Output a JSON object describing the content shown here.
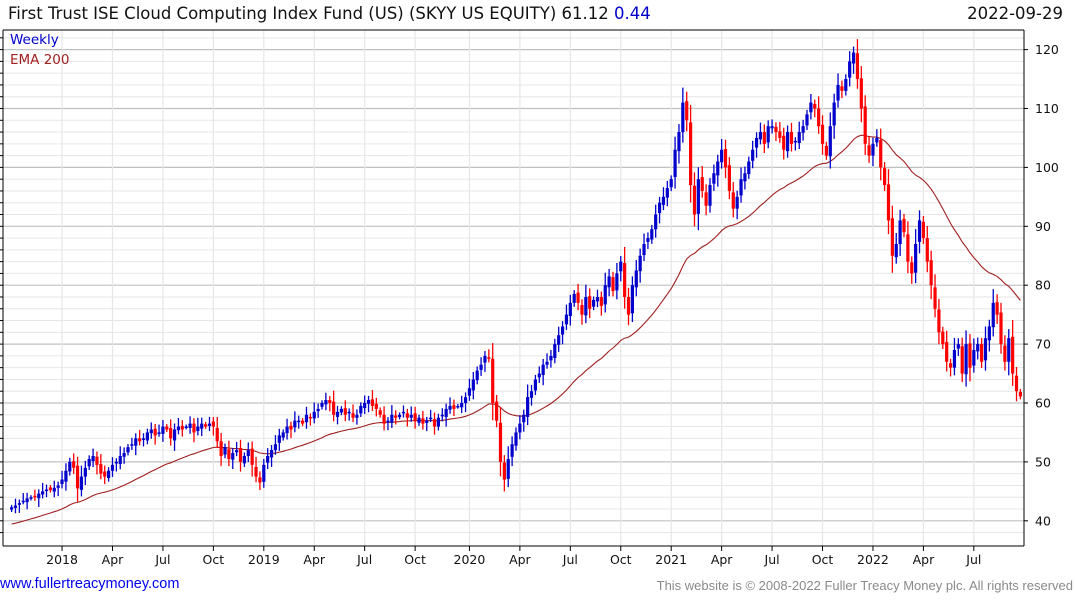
{
  "header": {
    "title": "First Trust ISE Cloud Computing Index Fund (US) (SKYY US EQUITY)",
    "last_price": "61.12",
    "change": "0.44",
    "date": "2022-09-29"
  },
  "legend": {
    "weekly": "Weekly",
    "ema": "EMA 200"
  },
  "footer": {
    "link": "www.fullertreacymoney.com",
    "copyright": "This website is © 2008-2022 Fuller Treacy Money plc. All rights reserved"
  },
  "colors": {
    "up": "#0000cc",
    "down": "#ff0000",
    "ema": "#a02020",
    "grid_major": "#c0c0c0",
    "grid_minor": "#e6e6e6"
  },
  "chart_data": {
    "type": "candlestick",
    "frequency": "weekly",
    "ylim": [
      36,
      123
    ],
    "yticks": [
      40,
      50,
      60,
      70,
      80,
      90,
      100,
      110,
      120
    ],
    "xticks": [
      {
        "label": "2018",
        "week": 13
      },
      {
        "label": "Apr",
        "week": 26
      },
      {
        "label": "Jul",
        "week": 39
      },
      {
        "label": "Oct",
        "week": 52
      },
      {
        "label": "2019",
        "week": 65
      },
      {
        "label": "Apr",
        "week": 78
      },
      {
        "label": "Jul",
        "week": 91
      },
      {
        "label": "Oct",
        "week": 104
      },
      {
        "label": "2020",
        "week": 118
      },
      {
        "label": "Apr",
        "week": 131
      },
      {
        "label": "Jul",
        "week": 144
      },
      {
        "label": "Oct",
        "week": 157
      },
      {
        "label": "2021",
        "week": 170
      },
      {
        "label": "Apr",
        "week": 183
      },
      {
        "label": "Jul",
        "week": 196
      },
      {
        "label": "Oct",
        "week": 209
      },
      {
        "label": "2022",
        "week": 222
      },
      {
        "label": "Apr",
        "week": 235
      },
      {
        "label": "Jul",
        "week": 248
      }
    ],
    "ema_period_label": "EMA 200",
    "ema_seed": 39.3,
    "closes": [
      42.3,
      42.6,
      43,
      43.4,
      43.8,
      44,
      44.2,
      44.6,
      45,
      45.3,
      45.2,
      45.6,
      46,
      47,
      48.5,
      50,
      49,
      45.5,
      47.5,
      49,
      50.5,
      51,
      49.5,
      48,
      47.5,
      48.5,
      49.5,
      50,
      51,
      51.5,
      52.5,
      53,
      54,
      53.5,
      54,
      55,
      55.5,
      54.5,
      55,
      56,
      55.5,
      54,
      55.5,
      56,
      55.5,
      56,
      56.5,
      55,
      56,
      56.5,
      56,
      56.5,
      56,
      53.5,
      51,
      52.5,
      50.5,
      51.5,
      52,
      50,
      51,
      52,
      49.5,
      47.5,
      46.5,
      49.5,
      51,
      52,
      53,
      54.5,
      55,
      56,
      55.5,
      57,
      57,
      56.5,
      58,
      57.5,
      58.5,
      59,
      60,
      60.5,
      60,
      58,
      58.5,
      59,
      58,
      58.5,
      57.5,
      58,
      59.5,
      60,
      60.5,
      59.5,
      59,
      58,
      56.5,
      57,
      58,
      57.5,
      58,
      58.5,
      57.5,
      58,
      57,
      57.5,
      56.5,
      57,
      57.5,
      56,
      57.5,
      58,
      59,
      59.5,
      59,
      59.5,
      60,
      61,
      62.5,
      64,
      65.5,
      66.5,
      68,
      67.5,
      60,
      57,
      50,
      47,
      50.5,
      53,
      55,
      56.5,
      58,
      61,
      62,
      64,
      65,
      66.5,
      67,
      68,
      70,
      71.5,
      73,
      75,
      77,
      78.5,
      77,
      75,
      78,
      76,
      77.5,
      78,
      76.5,
      80,
      81.5,
      79,
      82,
      84,
      78,
      75,
      80,
      82.5,
      85,
      87,
      88,
      89.5,
      92,
      94,
      95,
      96.5,
      98,
      103,
      106,
      111,
      108,
      97,
      92,
      98,
      96,
      93.5,
      97,
      99,
      101,
      103,
      100,
      96,
      93,
      95,
      98,
      99,
      101,
      103,
      105,
      106,
      104,
      107,
      107,
      106,
      105,
      103,
      106,
      104,
      104.5,
      106,
      107,
      109,
      111,
      110,
      107,
      104,
      102,
      107,
      111,
      114,
      113,
      115,
      118,
      119.5,
      115,
      110,
      104,
      102,
      104,
      105,
      100,
      97,
      91,
      85,
      87,
      91,
      89,
      84,
      82,
      87,
      91,
      88,
      84,
      80,
      76,
      72,
      70,
      67,
      66,
      69,
      70,
      65,
      70,
      66,
      69,
      70,
      67,
      71,
      73,
      77,
      75,
      70,
      67,
      71,
      65,
      62,
      61.12
    ]
  }
}
